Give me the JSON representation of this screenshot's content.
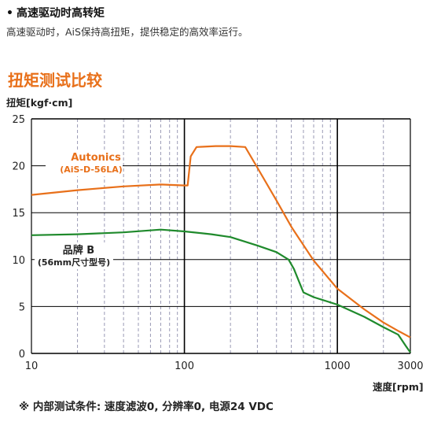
{
  "header": {
    "bullet": "•",
    "title": "高速驱动时高转矩",
    "subtitle": "高速驱动时，AiS保持高扭矩，提供稳定的高效率运行。"
  },
  "section_title": "扭矩测试比较",
  "footnote": "※ 内部测试条件: 速度滤波0, 分辨率0, 电源24 VDC",
  "colors": {
    "autonics": "#e8701a",
    "brand_b": "#1f8a2c",
    "accent": "#e8701a",
    "axis": "#000000"
  },
  "chart_data": {
    "type": "line",
    "x_scale": "log",
    "xlabel": "速度[rpm]",
    "ylabel": "扭矩[kgf·cm]",
    "xlim": [
      10,
      3000
    ],
    "ylim": [
      0,
      25
    ],
    "x_ticks": [
      10,
      100,
      1000,
      3000
    ],
    "x_tick_labels": [
      "10",
      "100",
      "1000",
      "3000"
    ],
    "y_ticks": [
      0,
      5,
      10,
      15,
      20,
      25
    ],
    "y_tick_labels": [
      "0",
      "5",
      "10",
      "15",
      "20",
      "25"
    ],
    "grid": true,
    "series": [
      {
        "name": "Autonics",
        "label_line1": "Autonics",
        "label_line2": "(AiS-D-56LA)",
        "color": "#e8701a",
        "x": [
          10,
          20,
          40,
          70,
          100,
          105,
          110,
          120,
          160,
          200,
          250,
          300,
          400,
          500,
          700,
          1000,
          1500,
          2000,
          2500,
          3000
        ],
        "y": [
          16.9,
          17.4,
          17.8,
          18.0,
          17.9,
          17.9,
          21.0,
          22.0,
          22.1,
          22.1,
          22.0,
          19.8,
          16.3,
          13.5,
          9.9,
          6.9,
          4.7,
          3.3,
          2.4,
          1.7
        ]
      },
      {
        "name": "品牌 B",
        "label_line1": "品牌 B",
        "label_line2": "(56mm尺寸型号)",
        "color": "#1f8a2c",
        "x": [
          10,
          20,
          40,
          70,
          100,
          150,
          200,
          300,
          400,
          480,
          520,
          600,
          700,
          1000,
          1500,
          2000,
          2500,
          2800,
          3000
        ],
        "y": [
          12.6,
          12.7,
          12.9,
          13.2,
          13.0,
          12.7,
          12.4,
          11.5,
          10.8,
          10.0,
          9.0,
          6.5,
          6.0,
          5.2,
          3.9,
          2.8,
          2.0,
          0.8,
          0.1
        ]
      }
    ]
  }
}
